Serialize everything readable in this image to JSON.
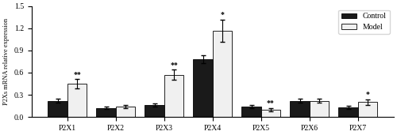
{
  "chart_data": {
    "type": "bar",
    "categories": [
      "P2X1",
      "P2X2",
      "P2X3",
      "P2X4",
      "P2X5",
      "P2X6",
      "P2X7"
    ],
    "series": [
      {
        "name": "Control",
        "color": "#1a1a1a",
        "values": [
          0.22,
          0.12,
          0.16,
          0.78,
          0.14,
          0.22,
          0.13
        ],
        "errors": [
          0.03,
          0.015,
          0.02,
          0.05,
          0.02,
          0.03,
          0.02
        ]
      },
      {
        "name": "Model",
        "color": "#f0f0f0",
        "values": [
          0.45,
          0.14,
          0.57,
          1.17,
          0.1,
          0.22,
          0.2
        ],
        "errors": [
          0.06,
          0.02,
          0.07,
          0.15,
          0.02,
          0.03,
          0.04
        ],
        "annotations": [
          "**",
          null,
          "**",
          "*",
          "**",
          null,
          "*"
        ]
      }
    ],
    "ylabel": "P2Xs mRNA relative expression",
    "ylim": [
      0,
      1.5
    ],
    "yticks": [
      0.0,
      0.3,
      0.6,
      0.9,
      1.2,
      1.5
    ],
    "legend": "upper right",
    "grid": false
  }
}
